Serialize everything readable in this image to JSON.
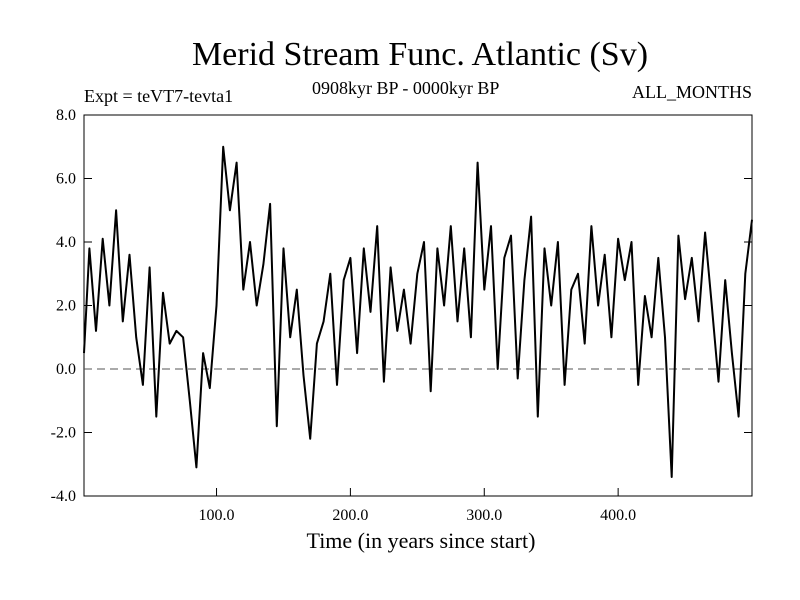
{
  "header": {
    "title": "Merid Stream Func. Atlantic (Sv)",
    "experiment": "Expt = teVT7-tevta1",
    "period": "0908kyr BP - 0000kyr BP",
    "months": "ALL_MONTHS"
  },
  "chart_data": {
    "type": "line",
    "title": "Merid Stream Func. Atlantic (Sv)",
    "xlabel": "Time (in years since start)",
    "ylabel": "",
    "xlim": [
      1,
      500
    ],
    "ylim": [
      -4.0,
      8.0
    ],
    "x_ticks": [
      100,
      200,
      300,
      400
    ],
    "x_tick_labels": [
      "100.0",
      "200.0",
      "300.0",
      "400.0"
    ],
    "y_ticks": [
      -4,
      -2,
      0,
      2,
      4,
      6,
      8
    ],
    "y_tick_labels": [
      "-4.0",
      "-2.0",
      "0.0",
      "2.0",
      "4.0",
      "6.0",
      "8.0"
    ],
    "reference_line": {
      "y": 0.0,
      "style": "dashed"
    },
    "series": [
      {
        "name": "Merid Stream Func. Atlantic",
        "x": [
          1,
          5,
          10,
          15,
          20,
          25,
          30,
          35,
          40,
          45,
          50,
          55,
          60,
          65,
          70,
          75,
          80,
          85,
          90,
          95,
          100,
          105,
          110,
          115,
          120,
          125,
          130,
          135,
          140,
          145,
          150,
          155,
          160,
          165,
          170,
          175,
          180,
          185,
          190,
          195,
          200,
          205,
          210,
          215,
          220,
          225,
          230,
          235,
          240,
          245,
          250,
          255,
          260,
          265,
          270,
          275,
          280,
          285,
          290,
          295,
          300,
          305,
          310,
          315,
          320,
          325,
          330,
          335,
          340,
          345,
          350,
          355,
          360,
          365,
          370,
          375,
          380,
          385,
          390,
          395,
          400,
          405,
          410,
          415,
          420,
          425,
          430,
          435,
          440,
          445,
          450,
          455,
          460,
          465,
          470,
          475,
          480,
          485,
          490,
          495,
          500
        ],
        "values": [
          0.5,
          3.8,
          1.2,
          4.1,
          2.0,
          5.0,
          1.5,
          3.6,
          1.0,
          -0.5,
          3.2,
          -1.5,
          2.4,
          0.8,
          1.2,
          1.0,
          -1.0,
          -3.1,
          0.5,
          -0.6,
          2.0,
          7.0,
          5.0,
          6.5,
          2.5,
          4.0,
          2.0,
          3.3,
          5.2,
          -1.8,
          3.8,
          1.0,
          2.5,
          -0.2,
          -2.2,
          0.8,
          1.5,
          3.0,
          -0.5,
          2.8,
          3.5,
          0.5,
          3.8,
          1.8,
          4.5,
          -0.4,
          3.2,
          1.2,
          2.5,
          0.8,
          3.0,
          4.0,
          -0.7,
          3.8,
          2.0,
          4.5,
          1.5,
          3.8,
          1.0,
          6.5,
          2.5,
          4.5,
          0.0,
          3.5,
          4.2,
          -0.3,
          2.8,
          4.8,
          -1.5,
          3.8,
          2.0,
          4.0,
          -0.5,
          2.5,
          3.0,
          0.8,
          4.5,
          2.0,
          3.6,
          1.0,
          4.1,
          2.8,
          4.0,
          -0.5,
          2.3,
          1.0,
          3.5,
          1.0,
          -3.4,
          4.2,
          2.2,
          3.5,
          1.5,
          4.3,
          2.0,
          -0.4,
          2.8,
          0.5,
          -1.5,
          3.0,
          4.7
        ]
      }
    ]
  }
}
